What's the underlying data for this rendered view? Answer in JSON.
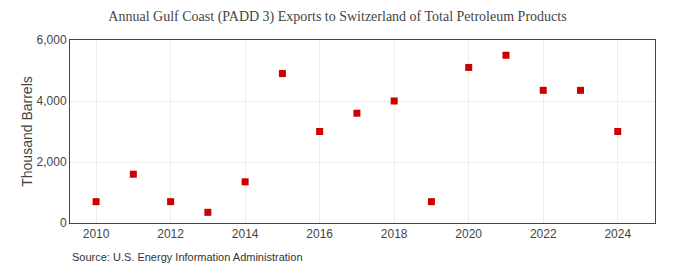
{
  "chart_data": {
    "type": "scatter",
    "title": "Annual Gulf Coast (PADD 3) Exports to Switzerland of Total Petroleum Products",
    "ylabel": "Thousand Barrels",
    "annotations": [
      "Source: U.S. Energy Information Administration"
    ],
    "x": [
      2010,
      2011,
      2012,
      2013,
      2014,
      2015,
      2016,
      2017,
      2018,
      2019,
      2020,
      2021,
      2022,
      2023,
      2024
    ],
    "values": [
      700,
      1600,
      700,
      350,
      1350,
      4900,
      3000,
      3600,
      4000,
      700,
      5100,
      5500,
      4350,
      4350,
      3000
    ],
    "color": "#CC0000",
    "marker": "square",
    "xlim": [
      2009.3,
      2025.0
    ],
    "xticks": [
      2010,
      2012,
      2014,
      2016,
      2018,
      2020,
      2022,
      2024
    ],
    "ylim": [
      0,
      6000
    ],
    "yticks": [
      0,
      {
        "value": 2000,
        "label": "2,000"
      },
      {
        "value": 4000,
        "label": "4,000"
      },
      {
        "value": 6000,
        "label": "6,000"
      }
    ],
    "grid": true
  }
}
